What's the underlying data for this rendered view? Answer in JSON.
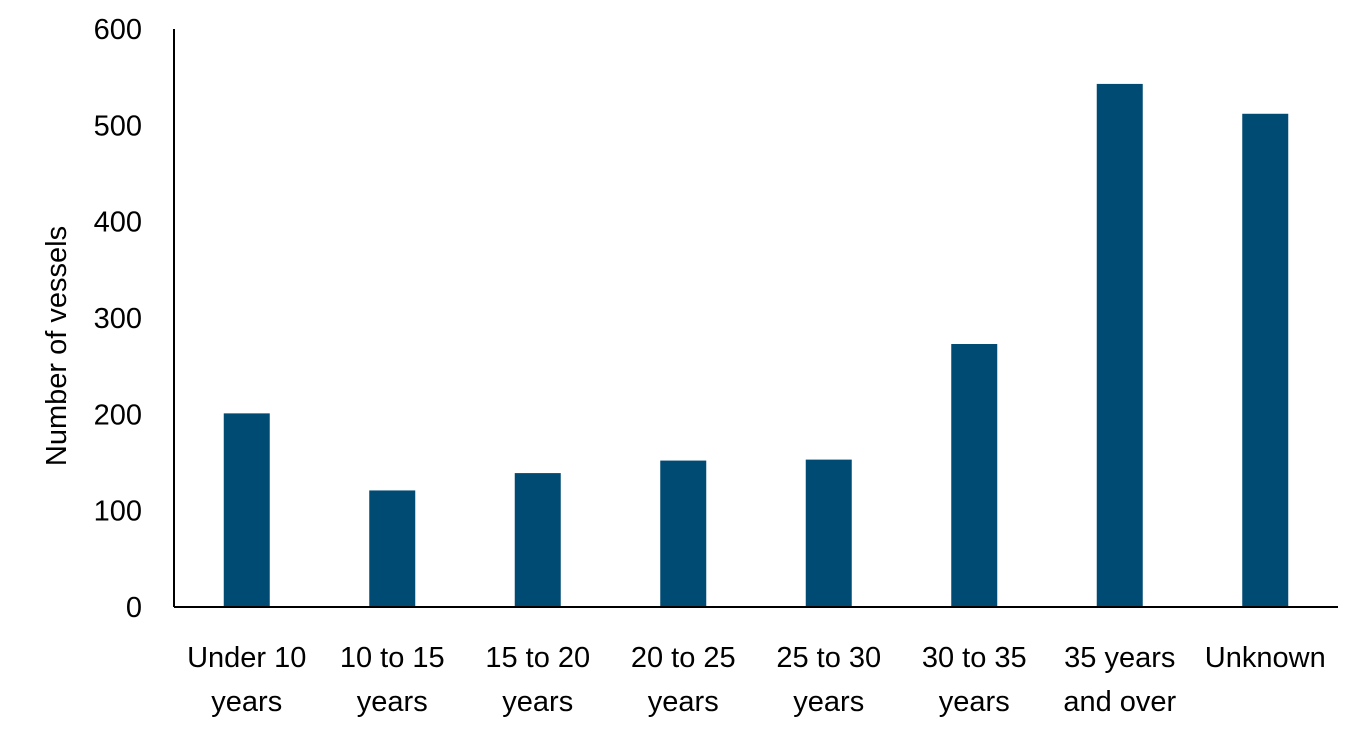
{
  "chart_data": {
    "type": "bar",
    "title": "",
    "xlabel": "",
    "ylabel": "Number of vessels",
    "ylim": [
      0,
      600
    ],
    "yticks": [
      0,
      100,
      200,
      300,
      400,
      500,
      600
    ],
    "grid": false,
    "bar_color": "#004B73",
    "categories": [
      [
        "Under 10",
        "years"
      ],
      [
        "10 to 15",
        "years"
      ],
      [
        "15 to 20",
        "years"
      ],
      [
        "20 to 25",
        "years"
      ],
      [
        "25 to 30",
        "years"
      ],
      [
        "30 to 35",
        "years"
      ],
      [
        "35 years",
        "and over"
      ],
      [
        "Unknown"
      ]
    ],
    "values": [
      201,
      121,
      139,
      152,
      153,
      273,
      543,
      512
    ]
  }
}
